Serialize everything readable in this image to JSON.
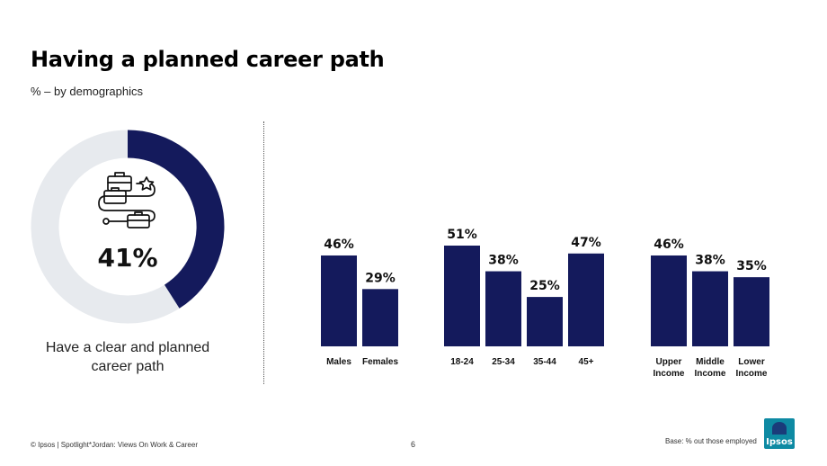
{
  "header": {
    "title": "Having a planned career path",
    "subtitle": "% – by demographics"
  },
  "summary": {
    "value_label": "41%",
    "caption": "Have a clear and planned career path",
    "icon": "career-path-icon"
  },
  "footer": {
    "source": "© Ipsos | Spotlight*Jordan: Views On Work & Career",
    "page_number": "6",
    "base_note": "Base: % out those employed",
    "logo": "Ipsos"
  },
  "colors": {
    "bar": "#141a5c",
    "donut_fill": "#141a5c",
    "donut_track": "#e7eaee"
  },
  "chart_data": [
    {
      "type": "pie",
      "variant": "donut",
      "values": [
        41,
        59
      ],
      "labels": [
        "41%",
        ""
      ]
    },
    {
      "type": "bar",
      "groups": [
        {
          "categories": [
            [
              "Males"
            ],
            [
              "Females"
            ]
          ],
          "values": [
            46,
            29
          ],
          "labels": [
            "46%",
            "29%"
          ]
        },
        {
          "categories": [
            [
              "18-24"
            ],
            [
              "25-34"
            ],
            [
              "35-44"
            ],
            [
              "45+"
            ]
          ],
          "values": [
            51,
            38,
            25,
            47
          ],
          "labels": [
            "51%",
            "38%",
            "25%",
            "47%"
          ]
        },
        {
          "categories": [
            [
              "Upper",
              "Income"
            ],
            [
              "Middle",
              "Income"
            ],
            [
              "Lower",
              "Income"
            ]
          ],
          "values": [
            46,
            38,
            35
          ],
          "labels": [
            "46%",
            "38%",
            "35%"
          ]
        }
      ],
      "ylim": [
        0,
        51
      ],
      "grid": false
    }
  ]
}
